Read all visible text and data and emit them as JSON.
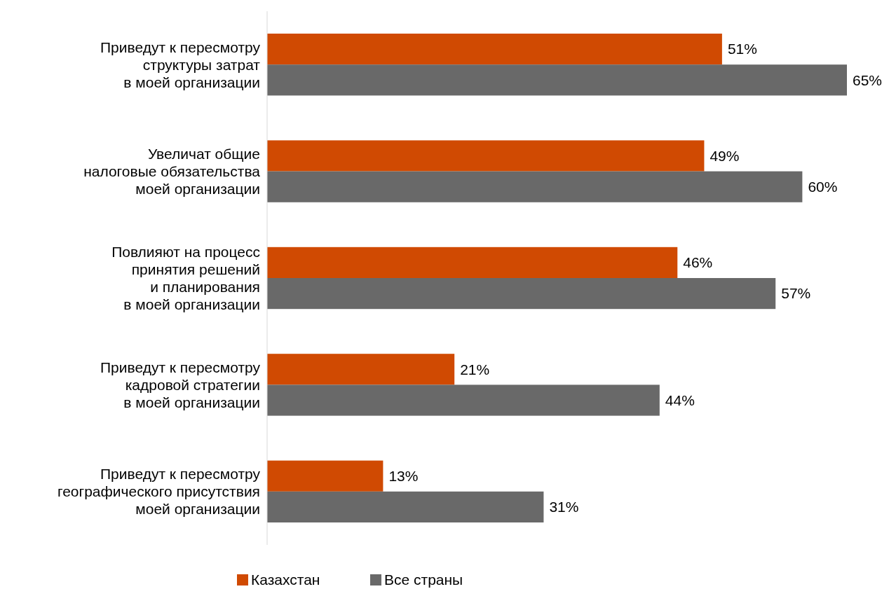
{
  "chart_data": {
    "type": "bar",
    "orientation": "horizontal",
    "legend": "bottom",
    "categories": [
      "Приведут к пересмотру\nструктуры затрат\nв моей организации",
      "Увеличат общие\nналоговые обязательства\nмоей организации",
      "Повлияют на процесс\nпринятия решений\nи планирования\nв моей организации",
      "Приведут к пересмотру\nкадровой стратегии\nв моей организации",
      "Приведут к пересмотру\nгеографического присутствия\nмоей организации"
    ],
    "series": [
      {
        "name": "Казахстан",
        "color": "#d04a02",
        "values": [
          51,
          49,
          46,
          21,
          13
        ],
        "value_labels": [
          "51%",
          "49%",
          "46%",
          "21%",
          "13%"
        ]
      },
      {
        "name": "Все страны",
        "color": "#696969",
        "values": [
          65,
          60,
          57,
          44,
          31
        ],
        "value_labels": [
          "65%",
          "60%",
          "57%",
          "44%",
          "31%"
        ]
      }
    ]
  }
}
